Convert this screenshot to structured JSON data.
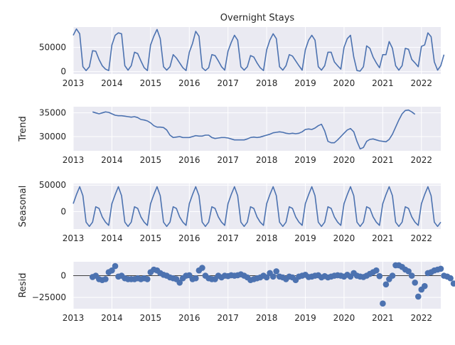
{
  "title": "Overnight Stays",
  "colors": {
    "series": "#4c72b0",
    "panel_background": "#eaeaf2",
    "grid": "#ffffff"
  },
  "chart_data": {
    "type": "line",
    "layout": "vertical stack of 4 panels sharing the time axis",
    "grid": true,
    "x_ticks": [
      "2013",
      "2014",
      "2015",
      "2016",
      "2017",
      "2018",
      "2019",
      "2020",
      "2021",
      "2022"
    ],
    "x_range": [
      2013.0,
      2022.5
    ],
    "panels": [
      {
        "id": "observed",
        "type": "line",
        "ylabel": "",
        "ylim": [
          -5000,
          92000
        ],
        "yticks": [
          {
            "value": 0,
            "label": "0"
          },
          {
            "value": 50000,
            "label": "50000"
          }
        ],
        "series": [
          {
            "start": 2013.0,
            "step_months": 1,
            "values": [
              75000,
              88000,
              78000,
              10000,
              2000,
              10000,
              43000,
              42000,
              25000,
              12000,
              5000,
              2000,
              55000,
              75000,
              80000,
              78000,
              12000,
              3000,
              12000,
              40000,
              37000,
              22000,
              8000,
              2000,
              55000,
              73000,
              87000,
              68000,
              10000,
              3000,
              10000,
              35000,
              28000,
              18000,
              8000,
              2000,
              40000,
              58000,
              83000,
              73000,
              8000,
              2000,
              8000,
              35000,
              33000,
              22000,
              10000,
              3000,
              42000,
              60000,
              75000,
              65000,
              10000,
              3000,
              10000,
              33000,
              30000,
              18000,
              8000,
              2000,
              45000,
              65000,
              78000,
              68000,
              10000,
              3000,
              12000,
              35000,
              32000,
              22000,
              12000,
              3000,
              45000,
              65000,
              75000,
              65000,
              10000,
              3000,
              12000,
              40000,
              40000,
              20000,
              12000,
              5000,
              50000,
              68000,
              75000,
              30000,
              2000,
              1000,
              10000,
              53000,
              48000,
              30000,
              18000,
              8000,
              35000,
              35000,
              62000,
              48000,
              12000,
              3000,
              12000,
              48000,
              46000,
              25000,
              18000,
              10000,
              52000,
              55000,
              80000,
              72000,
              20000,
              3000,
              12000,
              35000
            ]
          }
        ]
      },
      {
        "id": "trend",
        "type": "line",
        "ylabel": "Trend",
        "ylim": [
          27000,
          36300
        ],
        "yticks": [
          {
            "value": 30000,
            "label": "30000"
          },
          {
            "value": 35000,
            "label": "35000"
          }
        ],
        "series": [
          {
            "start": 2013.5,
            "step_months": 1,
            "values": [
              35200,
              35000,
              34800,
              35000,
              35200,
              35100,
              34800,
              34500,
              34400,
              34400,
              34300,
              34200,
              34100,
              34200,
              34000,
              33600,
              33500,
              33300,
              32900,
              32300,
              32000,
              32000,
              31900,
              31400,
              30300,
              29800,
              29900,
              30000,
              29800,
              29800,
              29800,
              30000,
              30200,
              30100,
              30100,
              30300,
              30300,
              29800,
              29600,
              29700,
              29800,
              29800,
              29700,
              29500,
              29300,
              29300,
              29300,
              29300,
              29500,
              29800,
              29900,
              29800,
              29900,
              30100,
              30300,
              30500,
              30800,
              30900,
              31000,
              30900,
              30700,
              30600,
              30700,
              30600,
              30700,
              31000,
              31500,
              31600,
              31500,
              31800,
              32300,
              32600,
              31200,
              29000,
              28700,
              28700,
              29300,
              30000,
              30700,
              31400,
              31700,
              31000,
              29000,
              27400,
              27700,
              29000,
              29400,
              29500,
              29300,
              29100,
              29000,
              28900,
              29400,
              30500,
              32000,
              33500,
              34800,
              35500,
              35600,
              35200,
              34700
            ]
          }
        ]
      },
      {
        "id": "seasonal",
        "type": "line",
        "ylabel": "Seasonal",
        "ylim": [
          -33000,
          53000
        ],
        "yticks": [
          {
            "value": 0,
            "label": "0"
          },
          {
            "value": 50000,
            "label": "50000"
          }
        ],
        "pattern_per_year": [
          15000,
          32000,
          47000,
          30000,
          -20000,
          -28000,
          -20000,
          9000,
          6000,
          -10000,
          -20000,
          -26000
        ],
        "series": [
          {
            "start": 2013.0,
            "step_months": 1,
            "repeat_pattern_until": 2022.5
          }
        ]
      },
      {
        "id": "resid",
        "type": "scatter",
        "ylabel": "Resid",
        "ylim": [
          -38000,
          16000
        ],
        "zero_line": true,
        "yticks": [
          {
            "value": 0,
            "label": "0"
          },
          {
            "value": -25000,
            "label": "−25000"
          }
        ],
        "series": [
          {
            "start": 2013.5,
            "step_months": 1,
            "values": [
              -1500,
              0,
              -4000,
              -5000,
              -4000,
              4000,
              6000,
              11000,
              -1000,
              0,
              -3000,
              -4000,
              -4000,
              -4000,
              -3000,
              -4000,
              -3000,
              -4000,
              4000,
              7000,
              6000,
              3000,
              1000,
              0,
              -2000,
              -3000,
              -4000,
              -8000,
              -3000,
              0,
              500,
              -4000,
              -3000,
              6000,
              9000,
              0,
              -3000,
              -4000,
              -4000,
              0,
              -2000,
              0,
              -500,
              500,
              0,
              500,
              1500,
              0,
              -2000,
              -5000,
              -4000,
              -3000,
              -2000,
              0,
              -2000,
              3000,
              -1000,
              5000,
              -1000,
              -2000,
              -4000,
              -1000,
              -2000,
              -5000,
              -1000,
              0,
              1000,
              -1500,
              -1000,
              0,
              500,
              -2000,
              -500,
              -2000,
              -1000,
              0,
              500,
              0,
              -1000,
              1000,
              -1000,
              3000,
              0,
              -1000,
              -1500,
              0,
              2000,
              4000,
              6000,
              -500,
              -32000,
              -10000,
              -4000,
              0,
              12000,
              12000,
              10000,
              7000,
              5000,
              0,
              -8000,
              -24000,
              -16000,
              -12000,
              3000,
              4000,
              6000,
              7000,
              8000,
              0,
              -1000,
              -3000,
              -9000
            ]
          }
        ]
      }
    ]
  }
}
